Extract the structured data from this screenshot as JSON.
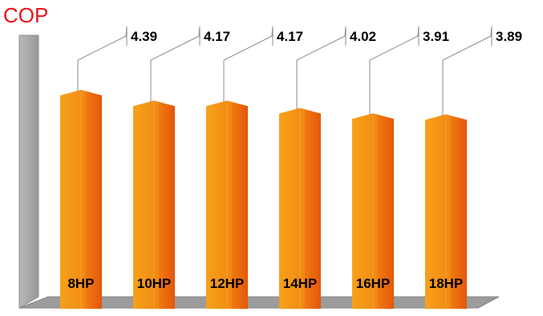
{
  "chart_data": {
    "type": "bar",
    "title": "COP",
    "categories": [
      "8HP",
      "10HP",
      "12HP",
      "14HP",
      "16HP",
      "18HP"
    ],
    "values": [
      4.39,
      4.17,
      4.17,
      4.02,
      3.91,
      3.89
    ],
    "value_labels": [
      "4.39",
      "4.17",
      "4.17",
      "4.02",
      "3.91",
      "3.89"
    ],
    "grid": false,
    "legend": "none",
    "colors": {
      "title": "#e8141c",
      "bar_light": "#f7a11a",
      "bar_dark": "#ea5a0c",
      "floor": "#9a9a9a",
      "wall": "#a8a8a8",
      "leader": "#8a8a8a",
      "label_text": "#000000"
    }
  }
}
